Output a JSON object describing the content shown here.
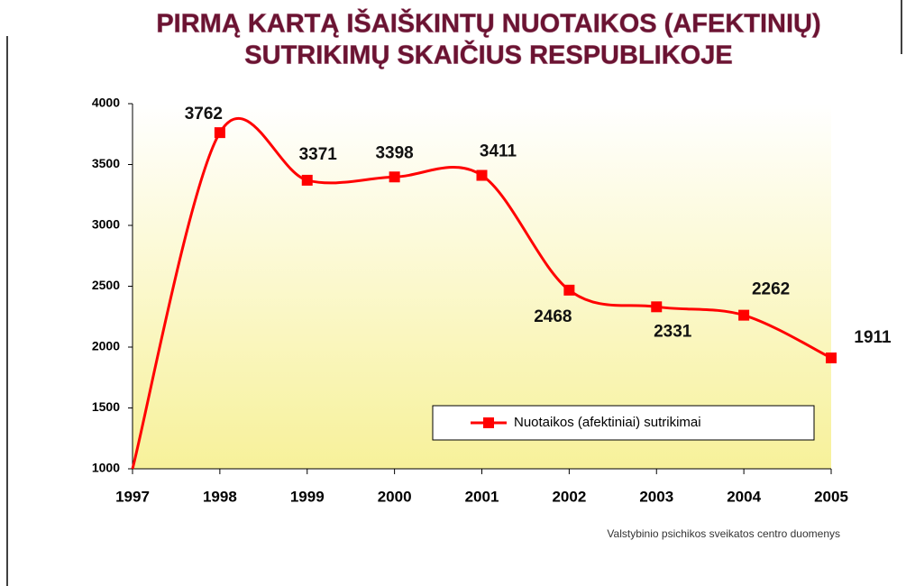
{
  "chart_data": {
    "type": "line",
    "title": [
      "PIRMĄ KARTĄ IŠAIŠKINTŲ NUOTAIKOS (AFEKTINIŲ)",
      "SUTRIKIMŲ SKAIČIUS RESPUBLIKOJE"
    ],
    "categories": [
      "1997",
      "1998",
      "1999",
      "2000",
      "2001",
      "2002",
      "2003",
      "2004",
      "2005"
    ],
    "series": [
      {
        "name": "Nuotaikos (afektiniai) sutrikimai",
        "color": "#ff0000",
        "values": [
          1000,
          3762,
          3371,
          3398,
          3411,
          2468,
          2331,
          2262,
          1911
        ],
        "value_labels": [
          null,
          "3762",
          "3371",
          "3398",
          "3411",
          "2468",
          "2331",
          "2262",
          "1911"
        ]
      }
    ],
    "ylim": [
      1000,
      4000
    ],
    "yticks": [
      1000,
      1500,
      2000,
      2500,
      3000,
      3500,
      4000
    ],
    "grid": false,
    "legend": "lower right",
    "source": "Valstybinio psichikos sveikatos centro duomenys"
  }
}
